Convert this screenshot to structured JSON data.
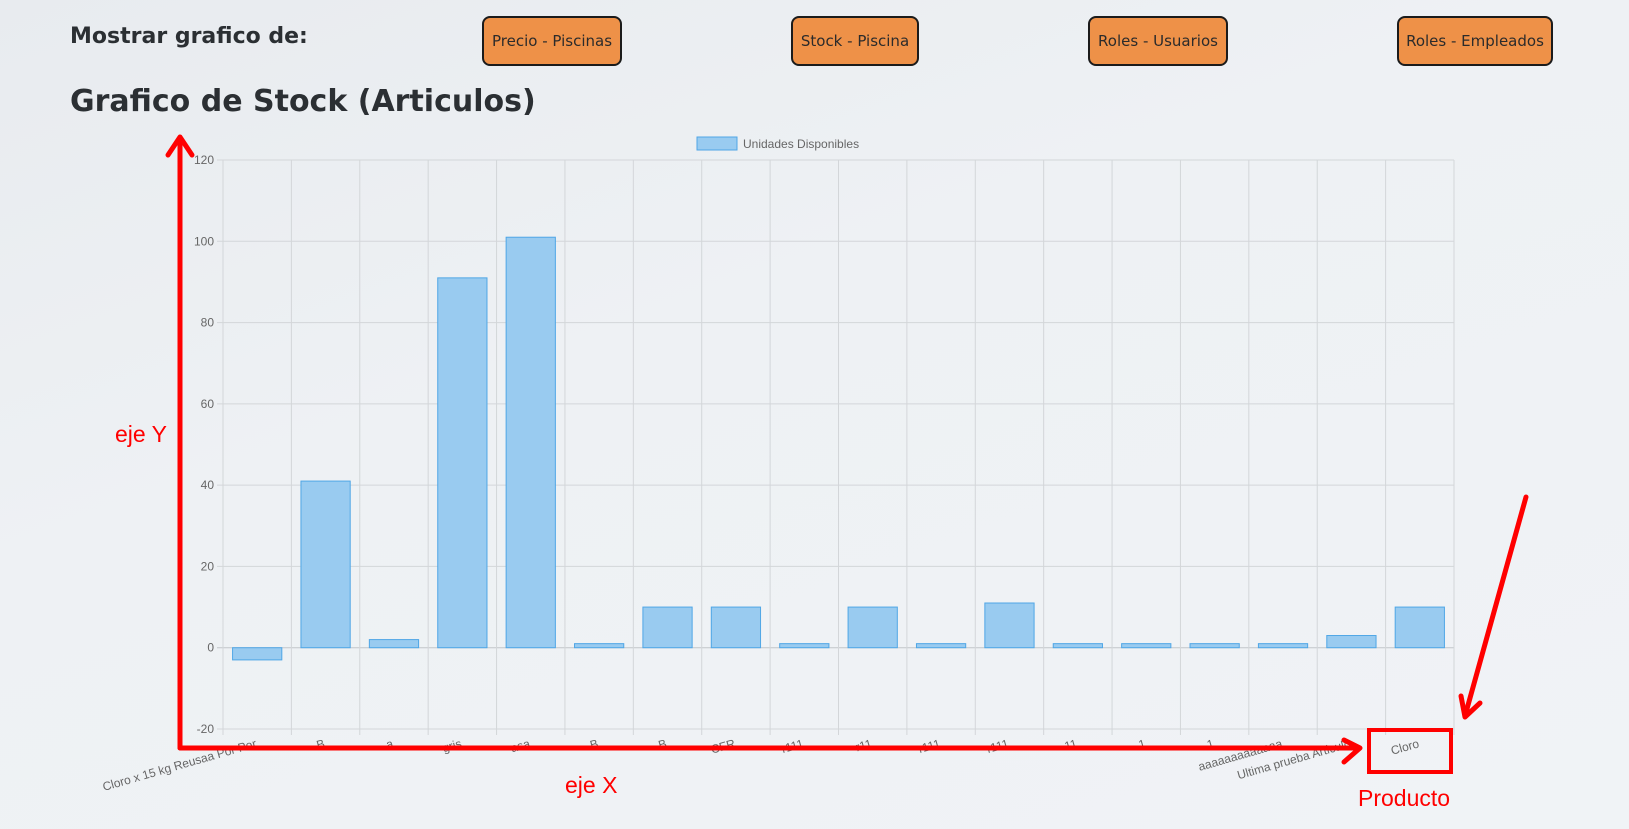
{
  "header": {
    "label": "Mostrar grafico de:",
    "buttons": [
      {
        "label": "Precio - Piscinas"
      },
      {
        "label": "Stock - Piscina"
      },
      {
        "label": "Roles - Usuarios"
      },
      {
        "label": "Roles - Empleados"
      }
    ]
  },
  "title": "Grafico de Stock (Articulos)",
  "colors": {
    "bar_fill": "#99cbf0",
    "bar_stroke": "#4fa6e6",
    "annotation": "#ff0000",
    "button_bg": "#ee9148"
  },
  "annotations": {
    "y_axis": "eje Y",
    "x_axis": "eje X",
    "producto": "Producto"
  },
  "chart_data": {
    "type": "bar",
    "legend": "Unidades Disponibles",
    "legend_position": "top-center",
    "grid": true,
    "ylim": [
      -20,
      120
    ],
    "yticks": [
      -20,
      0,
      20,
      40,
      60,
      80,
      100,
      120
    ],
    "categories": [
      "Cloro x 15 kg Reusaa Por Por",
      "B",
      "a",
      "gris",
      "asa",
      "B",
      "B",
      "CFR",
      "r111",
      "r11",
      "r111",
      "r111",
      "11",
      "1",
      "1",
      "aaaaaaaaaaaaa",
      "Ultima prueba Articulo",
      "Cloro"
    ],
    "series": [
      {
        "name": "Unidades Disponibles",
        "values": [
          -3,
          41,
          2,
          91,
          101,
          1,
          10,
          10,
          1,
          10,
          1,
          11,
          1,
          1,
          1,
          1,
          3,
          10
        ]
      }
    ]
  }
}
